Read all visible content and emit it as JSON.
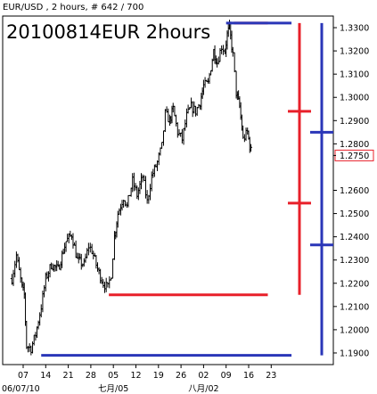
{
  "header": {
    "instrument_title": "EUR/USD , 2 hours, # 642 / 700",
    "chart_title": "20100814EUR 2hours"
  },
  "colors": {
    "price": "#000000",
    "red_marker": "#e8202a",
    "blue_marker": "#2a36b8",
    "current_price_box": "#e8202a"
  },
  "chart_data": {
    "type": "ohlc",
    "title": "20100814EUR 2hours",
    "xlabel": "",
    "ylabel": "",
    "ylim": [
      1.185,
      1.335
    ],
    "y_ticks": [
      "1.3300",
      "1.3200",
      "1.3100",
      "1.3000",
      "1.2900",
      "1.2800",
      "1.2750",
      "1.2600",
      "1.2500",
      "1.2400",
      "1.2300",
      "1.2200",
      "1.2100",
      "1.2000",
      "1.1900"
    ],
    "y_tick_values": [
      1.33,
      1.32,
      1.31,
      1.3,
      1.29,
      1.28,
      1.275,
      1.26,
      1.25,
      1.24,
      1.23,
      1.22,
      1.21,
      1.2,
      1.19
    ],
    "current_price": "1.2750",
    "x_tick_labels": [
      "07",
      "14",
      "21",
      "28",
      "05",
      "12",
      "19",
      "26",
      "02",
      "09",
      "16",
      "23"
    ],
    "x_tick_index": [
      0,
      1,
      2,
      3,
      4,
      5,
      6,
      7,
      8,
      9,
      10,
      11
    ],
    "date_labels": [
      {
        "text": "06/07/10",
        "at_index": -0.4
      },
      {
        "text": "七月/05",
        "at_index": 4
      },
      {
        "text": "八月/02",
        "at_index": 8
      }
    ],
    "series": [
      {
        "name": "",
        "anchors": [
          [
            -0.5,
            1.222
          ],
          [
            -0.3,
            1.232
          ],
          [
            -0.05,
            1.218
          ],
          [
            0.05,
            1.215
          ],
          [
            0.15,
            1.193
          ],
          [
            0.35,
            1.192
          ],
          [
            0.55,
            1.198
          ],
          [
            0.8,
            1.21
          ],
          [
            1.0,
            1.222
          ],
          [
            1.25,
            1.228
          ],
          [
            1.55,
            1.226
          ],
          [
            1.9,
            1.238
          ],
          [
            2.15,
            1.241
          ],
          [
            2.4,
            1.23
          ],
          [
            2.7,
            1.228
          ],
          [
            2.9,
            1.236
          ],
          [
            3.05,
            1.234
          ],
          [
            3.3,
            1.226
          ],
          [
            3.55,
            1.22
          ],
          [
            3.75,
            1.218
          ],
          [
            3.9,
            1.224
          ],
          [
            4.05,
            1.24
          ],
          [
            4.2,
            1.25
          ],
          [
            4.45,
            1.257
          ],
          [
            4.6,
            1.253
          ],
          [
            4.85,
            1.264
          ],
          [
            5.05,
            1.258
          ],
          [
            5.3,
            1.266
          ],
          [
            5.5,
            1.255
          ],
          [
            5.7,
            1.266
          ],
          [
            5.95,
            1.272
          ],
          [
            6.15,
            1.279
          ],
          [
            6.3,
            1.293
          ],
          [
            6.5,
            1.29
          ],
          [
            6.65,
            1.295
          ],
          [
            6.85,
            1.285
          ],
          [
            7.05,
            1.282
          ],
          [
            7.25,
            1.292
          ],
          [
            7.45,
            1.296
          ],
          [
            7.65,
            1.294
          ],
          [
            7.85,
            1.298
          ],
          [
            8.0,
            1.305
          ],
          [
            8.2,
            1.306
          ],
          [
            8.45,
            1.32
          ],
          [
            8.6,
            1.315
          ],
          [
            8.8,
            1.322
          ],
          [
            8.95,
            1.32
          ],
          [
            9.05,
            1.327
          ],
          [
            9.15,
            1.33
          ],
          [
            9.3,
            1.318
          ],
          [
            9.45,
            1.302
          ],
          [
            9.6,
            1.296
          ],
          [
            9.75,
            1.282
          ],
          [
            9.95,
            1.285
          ],
          [
            10.05,
            1.279
          ],
          [
            10.15,
            1.275
          ]
        ]
      }
    ],
    "annotations": {
      "red": {
        "top_level": 1.332,
        "bottom_level": 1.215,
        "ticks": [
          1.294,
          1.2545
        ],
        "horizontal_lines": [
          {
            "level": 1.332,
            "from_index": 9.35,
            "to_index": 10.85
          },
          {
            "level": 1.215,
            "from_index": 3.8,
            "to_index": 10.85
          }
        ]
      },
      "blue": {
        "top_level": 1.332,
        "bottom_level": 1.189,
        "ticks": [
          1.285,
          1.2365
        ],
        "horizontal_lines": [
          {
            "level": 1.332,
            "from_index": 9.0,
            "to_index": 11.9
          },
          {
            "level": 1.189,
            "from_index": 0.8,
            "to_index": 11.9
          }
        ]
      }
    }
  }
}
